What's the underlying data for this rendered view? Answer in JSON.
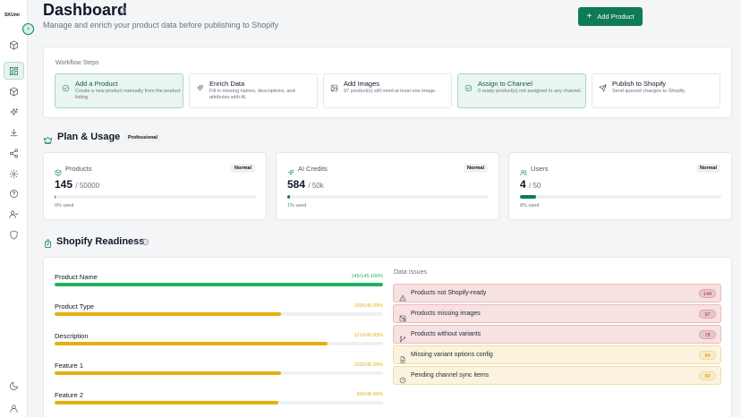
{
  "app": {
    "logo": "SKUmi"
  },
  "header": {
    "title": "Dashboard",
    "info_icon": "ⓘ",
    "subtitle": "Manage and enrich your product data before publishing to Shopify",
    "add_button": {
      "icon": "+",
      "label": "Add Product"
    }
  },
  "sidebar": {
    "collapse_icon": "›",
    "items": [
      {
        "name": "cube-icon",
        "active": false
      },
      {
        "name": "dashboard-icon",
        "active": true
      },
      {
        "name": "box-icon",
        "active": false
      },
      {
        "name": "sparkles-icon",
        "active": false
      },
      {
        "name": "download-icon",
        "active": false
      },
      {
        "name": "share-icon",
        "active": false
      },
      {
        "name": "settings-icon",
        "active": false
      },
      {
        "name": "help-icon",
        "active": false
      },
      {
        "name": "user-check-icon",
        "active": false
      },
      {
        "name": "shield-icon",
        "active": false
      }
    ],
    "bottom_items": [
      {
        "name": "theme-toggle-icon"
      },
      {
        "name": "user-icon"
      }
    ]
  },
  "workflow": {
    "title": "Workflow Steps",
    "steps": [
      {
        "title": "Add a Product",
        "desc": "Create a new product manually from the product listing.",
        "icon": "check-circle-icon",
        "active": true
      },
      {
        "title": "Enrich Data",
        "desc": "Fill in missing names, descriptions, and attributes with AI.",
        "icon": "sparkles-icon",
        "active": false
      },
      {
        "title": "Add Images",
        "desc": "97 product(s) still need at least one image.",
        "icon": "image-icon",
        "active": false
      },
      {
        "title": "Assign to Channel",
        "desc": "0 ready product(s) not assigned to any channel.",
        "icon": "check-circle-icon",
        "active": true
      },
      {
        "title": "Publish to Shopify",
        "desc": "Send queued changes to Shopify.",
        "icon": "send-icon",
        "active": false
      }
    ]
  },
  "plan": {
    "title": "Plan & Usage",
    "badge": "Professional",
    "cards": [
      {
        "label": "Products",
        "badge": "Normal",
        "value": "145",
        "limit": "/ 50000",
        "percent": 0.29,
        "used": "0% used",
        "icon": "cube-icon"
      },
      {
        "label": "AI Credits",
        "badge": "Normal",
        "value": "584",
        "limit": "/ 50k",
        "percent": 1.2,
        "used": "1% used",
        "icon": "sparkles-icon"
      },
      {
        "label": "Users",
        "badge": "Normal",
        "value": "4",
        "limit": "/ 50",
        "percent": 8,
        "used": "8% used",
        "icon": "users-icon"
      }
    ]
  },
  "readiness": {
    "title": "Shopify Readiness",
    "info_icon": "ⓘ",
    "fields": [
      {
        "name": "Product Name",
        "count": "145/145 100%",
        "percent": 100,
        "color": "#22b05c"
      },
      {
        "name": "Product Type",
        "count": "100/145 69%",
        "percent": 69,
        "color": "#e2b10f"
      },
      {
        "name": "Description",
        "count": "121/145 83%",
        "percent": 83,
        "color": "#e2b10f"
      },
      {
        "name": "Feature 1",
        "count": "100/145 69%",
        "percent": 69,
        "color": "#e2b10f"
      },
      {
        "name": "Feature 2",
        "count": "99/145 68%",
        "percent": 68,
        "color": "#e2b10f"
      }
    ],
    "issues_title": "Data Issues",
    "issues": [
      {
        "label": "Products not Shopify-ready",
        "count": "144",
        "tone": "red",
        "icon": "warning-icon"
      },
      {
        "label": "Products missing images",
        "count": "97",
        "tone": "red",
        "icon": "image-off-icon"
      },
      {
        "label": "Products without variants",
        "count": "78",
        "tone": "red",
        "icon": "branch-icon"
      },
      {
        "label": "Missing variant options config",
        "count": "84",
        "tone": "amber",
        "icon": "file-icon"
      },
      {
        "label": "Pending channel sync items",
        "count": "69",
        "tone": "amber",
        "icon": "clock-icon"
      }
    ]
  },
  "colors": {
    "accent": "#0f7a56",
    "success": "#22b05c",
    "warning": "#e2b10f",
    "danger_bg": "#f7e1e1",
    "warning_bg": "#fbf3dd"
  }
}
